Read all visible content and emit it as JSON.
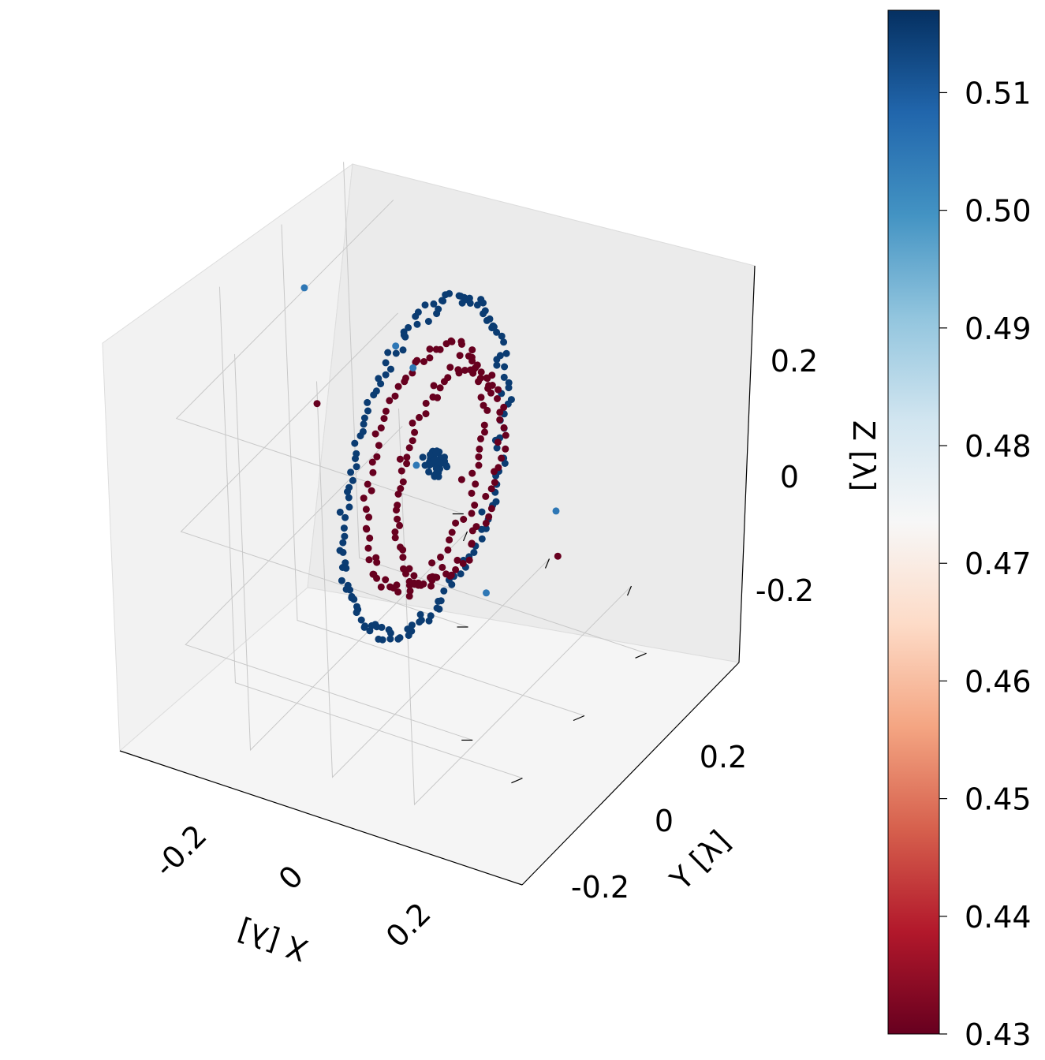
{
  "chart_data": {
    "type": "scatter",
    "projection": "3d",
    "grid": true,
    "legend": "none",
    "axes": {
      "x": {
        "label": "X [λ]",
        "range": [
          -0.35,
          0.35
        ],
        "ticks": [
          -0.2,
          0,
          0.2
        ],
        "tick_labels": [
          "-0.2",
          "0",
          "0.2"
        ]
      },
      "y": {
        "label": "Y [λ]",
        "range": [
          -0.35,
          0.35
        ],
        "ticks": [
          -0.2,
          0,
          0.2
        ],
        "tick_labels": [
          "-0.2",
          "0",
          "0.2"
        ]
      },
      "z": {
        "label": "Z [λ]",
        "range": [
          -0.35,
          0.35
        ],
        "ticks": [
          -0.2,
          0,
          0.2
        ],
        "tick_labels": [
          "-0.2",
          "0",
          "0.2"
        ]
      }
    },
    "colorbar": {
      "colormap": "RdBu",
      "range": [
        0.43,
        0.517
      ],
      "ticks": [
        0.43,
        0.44,
        0.45,
        0.46,
        0.47,
        0.48,
        0.49,
        0.5,
        0.51
      ],
      "tick_labels": [
        "0.43",
        "0.44",
        "0.45",
        "0.46",
        "0.47",
        "0.48",
        "0.49",
        "0.50",
        "0.51"
      ]
    },
    "series": [
      {
        "role": "outer ring (blue)",
        "value": 0.515,
        "geometry": "ring",
        "plane": "x=-0.02",
        "radius": 0.26,
        "count": 150
      },
      {
        "role": "inner ring A (red)",
        "value": 0.43,
        "geometry": "ring",
        "plane": "x=-0.02",
        "radius": 0.19,
        "count": 85
      },
      {
        "role": "inner ring B (red)",
        "value": 0.43,
        "geometry": "ring",
        "plane": "x=0.04",
        "radius": 0.17,
        "count": 85
      }
    ],
    "points": [
      {
        "x": -0.01,
        "y": -0.02,
        "z": 0.0,
        "value": 0.515,
        "note": "center cluster",
        "count": 40,
        "spread": 0.035
      },
      {
        "x": 0.07,
        "y": 0.0,
        "z": 0.0,
        "value": 0.43
      },
      {
        "x": -0.08,
        "y": 0.0,
        "z": 0.0,
        "value": 0.43
      },
      {
        "x": -0.28,
        "y": 0.0,
        "z": 0.05,
        "value": 0.43
      },
      {
        "x": 0.3,
        "y": 0.0,
        "z": -0.08,
        "value": 0.43
      },
      {
        "x": -0.3,
        "y": 0.0,
        "z": 0.25,
        "value": 0.505
      },
      {
        "x": 0.12,
        "y": 0.2,
        "z": 0.32,
        "value": 0.505
      },
      {
        "x": 0.3,
        "y": 0.0,
        "z": 0.0,
        "value": 0.505
      },
      {
        "x": -0.08,
        "y": 0.0,
        "z": 0.2,
        "value": 0.505
      },
      {
        "x": -0.2,
        "y": -0.2,
        "z": -0.15,
        "value": 0.505
      },
      {
        "x": 0.0,
        "y": -0.15,
        "z": -0.3,
        "value": 0.505
      }
    ]
  }
}
